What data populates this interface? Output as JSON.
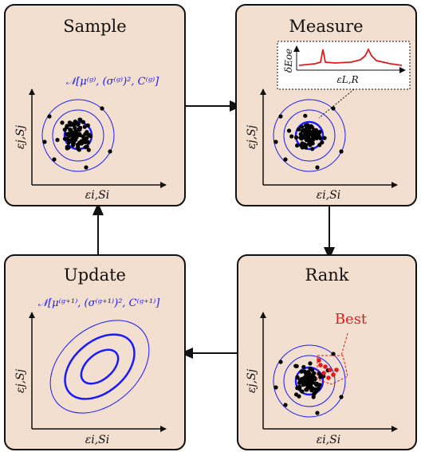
{
  "panels": {
    "sample": {
      "title": "Sample",
      "formula": "𝒩[μ⁽ᵍ⁾, (σ⁽ᵍ⁾)², C⁽ᵍ⁾]",
      "xlabel": "εi,Si",
      "ylabel": "εj,Sj"
    },
    "measure": {
      "title": "Measure",
      "xlabel": "εi,Si",
      "ylabel": "εj,Sj",
      "inset": {
        "xlabel": "εL,R",
        "ylabel": "δEoe"
      }
    },
    "update": {
      "title": "Update",
      "formula": "𝒩[μ⁽ᵍ⁺¹⁾, (σ⁽ᵍ⁺¹⁾)², C⁽ᵍ⁺¹⁾]",
      "xlabel": "εi,Si",
      "ylabel": "εj,Sj"
    },
    "rank": {
      "title": "Rank",
      "best_label": "Best",
      "xlabel": "εi,Si",
      "ylabel": "εj,Sj"
    }
  },
  "colors": {
    "panel_bg": "#f2dfd0",
    "contour": "#1a1aff",
    "best": "#e31a1c",
    "points": "#000000"
  },
  "flow": [
    "Sample",
    "Measure",
    "Rank",
    "Update"
  ]
}
